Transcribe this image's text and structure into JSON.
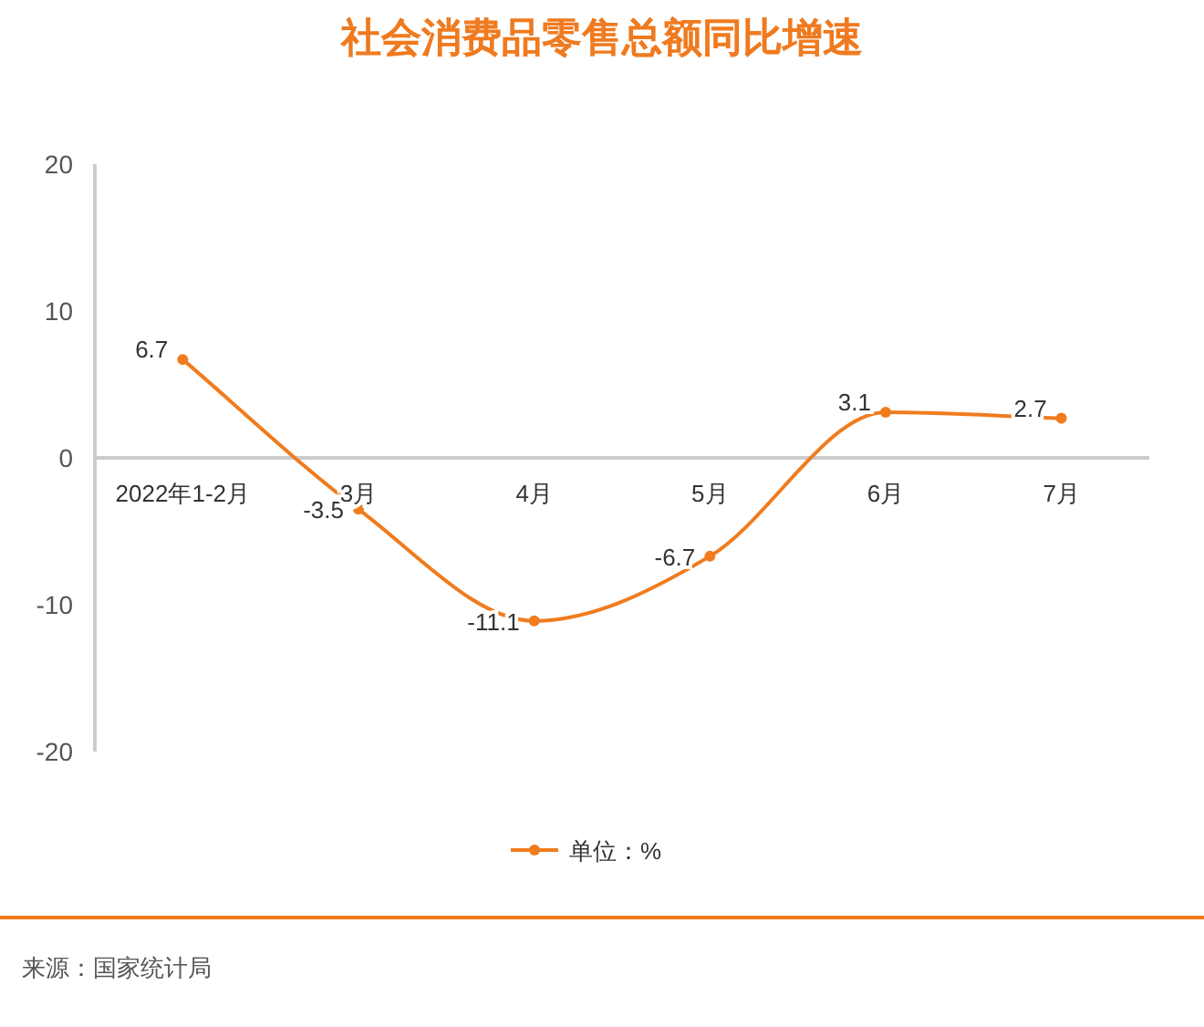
{
  "chart_data": {
    "type": "line",
    "title": "社会消费品零售总额同比增速",
    "categories": [
      "2022年1-2月",
      "3月",
      "4月",
      "5月",
      "6月",
      "7月"
    ],
    "series": [
      {
        "name": "单位：%",
        "color": "#f07c1e",
        "values": [
          6.7,
          -3.5,
          -11.1,
          -6.7,
          3.1,
          2.7
        ]
      }
    ],
    "ylim": [
      -20,
      20
    ],
    "yticks": [
      -20,
      -10,
      0,
      10,
      20
    ],
    "marker": "circle",
    "data_labels": true,
    "legend": "bottom",
    "annotations": [
      "来源：国家统计局"
    ]
  }
}
